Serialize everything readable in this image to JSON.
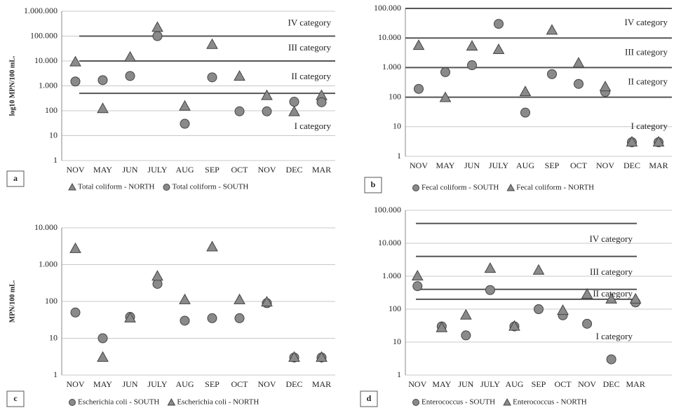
{
  "chart_data": [
    {
      "type": "scatter",
      "panel": "a",
      "ylabel": "log10 MPN/100 mL.",
      "log_scale": true,
      "grid": true,
      "categories": [
        "NOV",
        "MAY",
        "JUN",
        "JULY",
        "AUG",
        "SEP",
        "OCT",
        "NOV",
        "DEC",
        "MAR"
      ],
      "ylim": [
        1,
        1000000
      ],
      "yticks": [
        1,
        10,
        100,
        {
          "value": 1000,
          "label": "1.000"
        },
        {
          "value": 10000,
          "label": "10.000"
        },
        {
          "value": 100000,
          "label": "100.000"
        },
        {
          "value": 1000000,
          "label": "1.000.000"
        }
      ],
      "thresholds": [
        100000,
        10000,
        500
      ],
      "category_labels": [
        "IV category",
        "III category",
        "II category",
        "I category"
      ],
      "series": [
        {
          "name": "Total coliform  - NORTH",
          "marker": "triangle",
          "color": "#8a8a8a",
          "values": [
            9000,
            120,
            14000,
            220000,
            150,
            45000,
            2400,
            400,
            90,
            400
          ]
        },
        {
          "name": "Total coliform  - SOUTH",
          "marker": "circle",
          "color": "#8a8a8a",
          "values": [
            1500,
            1700,
            2500,
            100000,
            30,
            2200,
            95,
            95,
            230,
            220
          ]
        }
      ]
    },
    {
      "type": "scatter",
      "panel": "b",
      "log_scale": true,
      "grid": true,
      "categories": [
        "NOV",
        "MAY",
        "JUN",
        "JULY",
        "AUG",
        "SEP",
        "OCT",
        "NOV",
        "DEC",
        "MAR"
      ],
      "ylim": [
        1,
        100000
      ],
      "yticks": [
        1,
        10,
        100,
        {
          "value": 1000,
          "label": "1.000"
        },
        {
          "value": 10000,
          "label": "10.000"
        },
        {
          "value": 100000,
          "label": "100.000"
        }
      ],
      "thresholds": [
        100000,
        10000,
        1000,
        100
      ],
      "category_labels": [
        "IV category",
        "III category",
        "II category",
        "I category"
      ],
      "series": [
        {
          "name": "Fecal coliform - SOUTH",
          "marker": "circle",
          "color": "#8a8a8a",
          "values": [
            190,
            700,
            1200,
            30000,
            30,
            600,
            280,
            150,
            3,
            3
          ]
        },
        {
          "name": "Fecal coliform - NORTH",
          "marker": "triangle",
          "color": "#8a8a8a",
          "values": [
            5500,
            95,
            5200,
            4000,
            150,
            18000,
            1400,
            220,
            3,
            3
          ]
        }
      ]
    },
    {
      "type": "scatter",
      "panel": "c",
      "ylabel": "MPN/100 mL.",
      "log_scale": true,
      "grid": true,
      "categories": [
        "NOV",
        "MAY",
        "JUN",
        "JULY",
        "AUG",
        "SEP",
        "OCT",
        "NOV",
        "DEC",
        "MAR"
      ],
      "ylim": [
        1,
        10000
      ],
      "yticks": [
        1,
        10,
        100,
        {
          "value": 1000,
          "label": "1.000"
        },
        {
          "value": 10000,
          "label": "10.000"
        }
      ],
      "series": [
        {
          "name": "Escherichia coli - SOUTH",
          "marker": "circle",
          "color": "#8a8a8a",
          "values": [
            50,
            10,
            38,
            300,
            30,
            35,
            35,
            90,
            3,
            3
          ]
        },
        {
          "name": "Escherichia coli - NORTH",
          "marker": "triangle",
          "color": "#8a8a8a",
          "values": [
            2700,
            3,
            35,
            480,
            110,
            3000,
            110,
            95,
            3,
            3
          ]
        }
      ]
    },
    {
      "type": "scatter",
      "panel": "d",
      "log_scale": true,
      "grid": true,
      "categories": [
        "NOV",
        "MAY",
        "JUN",
        "JULY",
        "AUG",
        "SEP",
        "OCT",
        "NOV",
        "DEC",
        "MAR"
      ],
      "ylim": [
        1,
        100000
      ],
      "yticks": [
        1,
        10,
        100,
        {
          "value": 1000,
          "label": "1.000"
        },
        {
          "value": 10000,
          "label": "10.000"
        },
        {
          "value": 100000,
          "label": "100.000"
        }
      ],
      "thresholds": [
        40000,
        4000,
        400,
        200
      ],
      "category_labels": [
        "IV category",
        "III category",
        "II category",
        "I category"
      ],
      "series": [
        {
          "name": "Enterococcus - SOUTH",
          "marker": "circle",
          "color": "#8a8a8a",
          "values": [
            500,
            30,
            16,
            380,
            30,
            100,
            65,
            36,
            3,
            160
          ]
        },
        {
          "name": "Enterococcus - NORTH",
          "marker": "triangle",
          "color": "#8a8a8a",
          "values": [
            1000,
            27,
            65,
            1700,
            30,
            1500,
            90,
            280,
            200,
            200
          ]
        }
      ]
    }
  ]
}
